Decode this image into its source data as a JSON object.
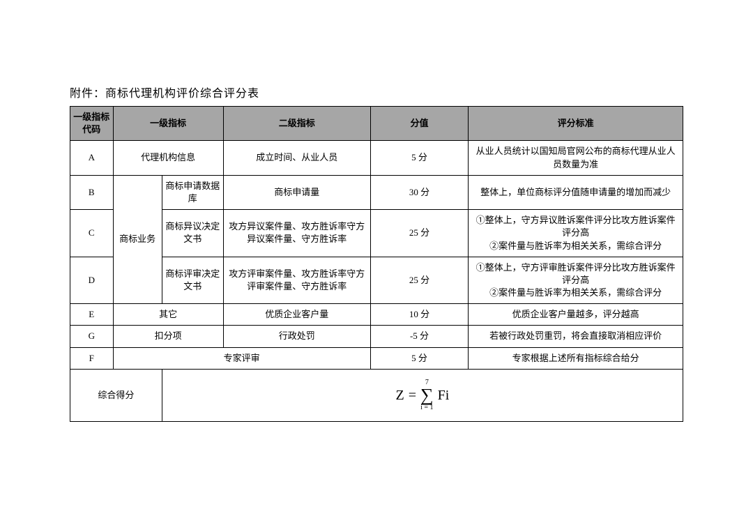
{
  "title": "附件：商标代理机构评价综合评分表",
  "headers": {
    "code": "一级指标代码",
    "level1": "一级指标",
    "level2": "二级指标",
    "score": "分值",
    "criteria": "评分标准"
  },
  "rows": {
    "A": {
      "code": "A",
      "level1": "代理机构信息",
      "level2": "成立时间、从业人员",
      "score": "5 分",
      "criteria": "从业人员统计以国知局官网公布的商标代理从业人员数量为准"
    },
    "B": {
      "code": "B",
      "level1_merged": "商标业务",
      "level1b": "商标申请数据库",
      "level2": "商标申请量",
      "score": "30 分",
      "criteria": "整体上，单位商标评分值随申请量的增加而减少"
    },
    "C": {
      "code": "C",
      "level1b": "商标异议决定文书",
      "level2": "攻方异议案件量、攻方胜诉率守方异议案件量、守方胜诉率",
      "score": "25 分",
      "criteria": "①整体上，守方异议胜诉案件评分比攻方胜诉案件评分高\n②案件量与胜诉率为相关关系，需综合评分"
    },
    "D": {
      "code": "D",
      "level1b": "商标评审决定文书",
      "level2": "攻方评审案件量、攻方胜诉率守方评审案件量、守方胜诉率",
      "score": "25 分",
      "criteria": "①整体上，守方评审胜诉案件评分比攻方胜诉案件评分高\n②案件量与胜诉率为相关关系，需综合评分"
    },
    "E": {
      "code": "E",
      "level1": "其它",
      "level2": "优质企业客户量",
      "score": "10 分",
      "criteria": "优质企业客户量越多，评分越高"
    },
    "G": {
      "code": "G",
      "level1": "扣分项",
      "level2": "行政处罚",
      "score": "-5 分",
      "criteria": "若被行政处罚重罚，将会直接取消相应评价"
    },
    "F": {
      "code": "F",
      "level1": "专家评审",
      "level2": "",
      "score": "5 分",
      "criteria": "专家根据上述所有指标综合给分"
    }
  },
  "total": {
    "label": "综合得分",
    "formula_z": "Z",
    "formula_eq": "=",
    "formula_top": "7",
    "formula_bot": "i = 1",
    "formula_sigma": "∑",
    "formula_fi": "Fi"
  }
}
